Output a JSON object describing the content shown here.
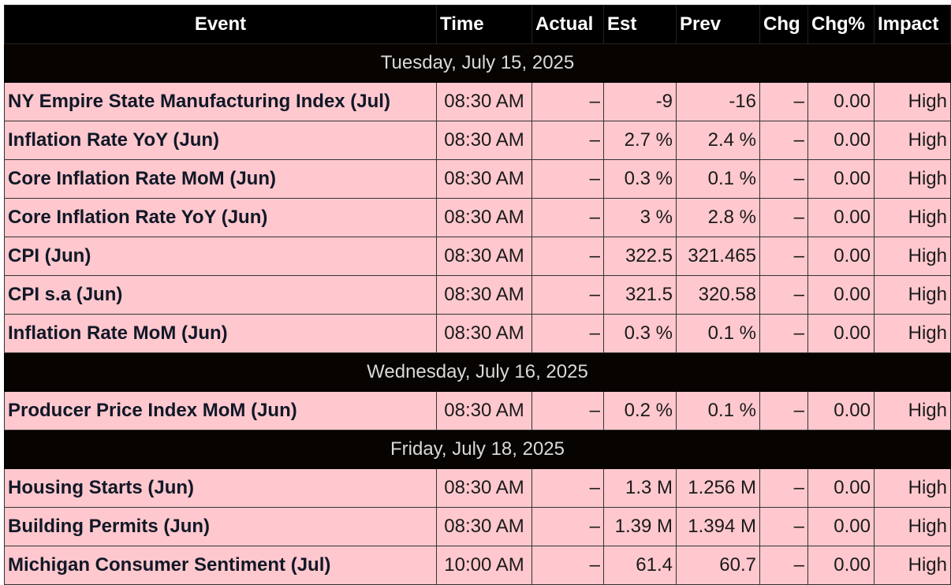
{
  "headers": [
    "Event",
    "Time",
    "Actual",
    "Est",
    "Prev",
    "Chg",
    "Chg%",
    "Impact"
  ],
  "groups": [
    {
      "date": "Tuesday, July 15, 2025",
      "rows": [
        {
          "event": "NY Empire State Manufacturing Index (Jul)",
          "time": "08:30 AM",
          "actual": "–",
          "est": "-9",
          "prev": "-16",
          "chg": "–",
          "chg_pct": "0.00",
          "impact": "High"
        },
        {
          "event": "Inflation Rate YoY (Jun)",
          "time": "08:30 AM",
          "actual": "–",
          "est": "2.7 %",
          "prev": "2.4 %",
          "chg": "–",
          "chg_pct": "0.00",
          "impact": "High"
        },
        {
          "event": "Core Inflation Rate MoM (Jun)",
          "time": "08:30 AM",
          "actual": "–",
          "est": "0.3 %",
          "prev": "0.1 %",
          "chg": "–",
          "chg_pct": "0.00",
          "impact": "High"
        },
        {
          "event": "Core Inflation Rate YoY (Jun)",
          "time": "08:30 AM",
          "actual": "–",
          "est": "3 %",
          "prev": "2.8 %",
          "chg": "–",
          "chg_pct": "0.00",
          "impact": "High"
        },
        {
          "event": "CPI (Jun)",
          "time": "08:30 AM",
          "actual": "–",
          "est": "322.5",
          "prev": "321.465",
          "chg": "–",
          "chg_pct": "0.00",
          "impact": "High"
        },
        {
          "event": "CPI s.a (Jun)",
          "time": "08:30 AM",
          "actual": "–",
          "est": "321.5",
          "prev": "320.58",
          "chg": "–",
          "chg_pct": "0.00",
          "impact": "High"
        },
        {
          "event": "Inflation Rate MoM (Jun)",
          "time": "08:30 AM",
          "actual": "–",
          "est": "0.3 %",
          "prev": "0.1 %",
          "chg": "–",
          "chg_pct": "0.00",
          "impact": "High"
        }
      ]
    },
    {
      "date": "Wednesday, July 16, 2025",
      "rows": [
        {
          "event": "Producer Price Index MoM (Jun)",
          "time": "08:30 AM",
          "actual": "–",
          "est": "0.2 %",
          "prev": "0.1 %",
          "chg": "–",
          "chg_pct": "0.00",
          "impact": "High"
        }
      ]
    },
    {
      "date": "Friday, July 18, 2025",
      "rows": [
        {
          "event": "Housing Starts (Jun)",
          "time": "08:30 AM",
          "actual": "–",
          "est": "1.3 M",
          "prev": "1.256 M",
          "chg": "–",
          "chg_pct": "0.00",
          "impact": "High"
        },
        {
          "event": "Building Permits (Jun)",
          "time": "08:30 AM",
          "actual": "–",
          "est": "1.39 M",
          "prev": "1.394 M",
          "chg": "–",
          "chg_pct": "0.00",
          "impact": "High"
        },
        {
          "event": "Michigan Consumer Sentiment (Jul)",
          "time": "10:00 AM",
          "actual": "–",
          "est": "61.4",
          "prev": "60.7",
          "chg": "–",
          "chg_pct": "0.00",
          "impact": "High"
        }
      ]
    }
  ],
  "colors": {
    "header_bg": "#000000",
    "header_text": "#ffffff",
    "date_row_bg": "#060300",
    "date_row_text": "#d9d9d9",
    "event_row_bg": "#ffc8ce"
  }
}
